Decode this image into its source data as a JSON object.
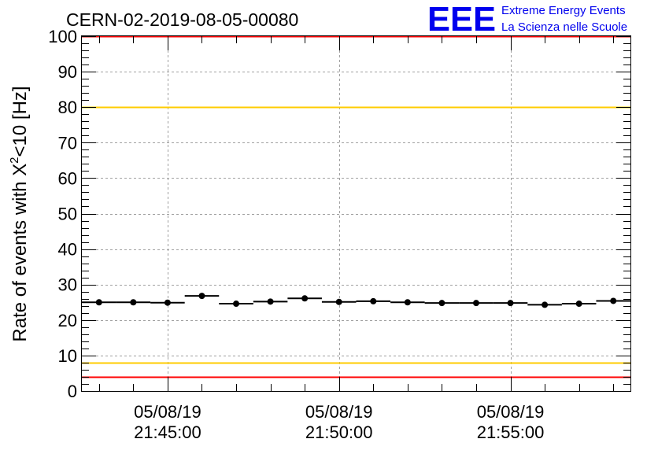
{
  "chart_data": {
    "type": "scatter",
    "title": "CERN-02-2019-08-05-00080",
    "logo": {
      "mark": "EEE",
      "line1": "Extreme Energy Events",
      "line2": "La Scienza nelle Scuole"
    },
    "ylabel_main": "Rate of events with X",
    "ylabel_sup": "2",
    "ylabel_tail": "<10 [Hz]",
    "xlim": [
      "21:42:30",
      "21:58:30"
    ],
    "ylim": [
      0,
      100
    ],
    "yticks": [
      0,
      10,
      20,
      30,
      40,
      50,
      60,
      70,
      80,
      90,
      100
    ],
    "xticks": [
      {
        "time": "21:45:00",
        "date": "05/08/19",
        "clock": "21:45:00"
      },
      {
        "time": "21:50:00",
        "date": "05/08/19",
        "clock": "21:50:00"
      },
      {
        "time": "21:55:00",
        "date": "05/08/19",
        "clock": "21:55:00"
      }
    ],
    "grid": true,
    "bin_width_seconds": 60,
    "points": [
      {
        "x": "21:43:00",
        "y": 25.0
      },
      {
        "x": "21:44:00",
        "y": 25.0
      },
      {
        "x": "21:45:00",
        "y": 24.9
      },
      {
        "x": "21:46:00",
        "y": 26.8
      },
      {
        "x": "21:47:00",
        "y": 24.6
      },
      {
        "x": "21:48:00",
        "y": 25.2
      },
      {
        "x": "21:49:00",
        "y": 26.1
      },
      {
        "x": "21:50:00",
        "y": 25.1
      },
      {
        "x": "21:51:00",
        "y": 25.3
      },
      {
        "x": "21:52:00",
        "y": 25.0
      },
      {
        "x": "21:53:00",
        "y": 24.8
      },
      {
        "x": "21:54:00",
        "y": 24.8
      },
      {
        "x": "21:55:00",
        "y": 24.8
      },
      {
        "x": "21:56:00",
        "y": 24.3
      },
      {
        "x": "21:57:00",
        "y": 24.6
      },
      {
        "x": "21:58:00",
        "y": 25.4
      }
    ],
    "reference_lines": [
      {
        "y": 100,
        "color": "#ff0000"
      },
      {
        "y": 80,
        "color": "#ffcc00"
      },
      {
        "y": 8,
        "color": "#ffcc00"
      },
      {
        "y": 4,
        "color": "#ff0000"
      }
    ],
    "colors": {
      "marker": "#000000",
      "grid": "#a0a0a0",
      "logo": "#0000ee",
      "red": "#ff0000",
      "yellow": "#ffcc00"
    }
  }
}
